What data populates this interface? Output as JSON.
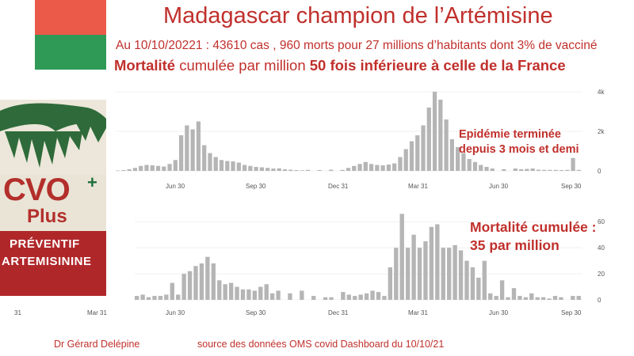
{
  "header": {
    "title": "Madagascar champion de l’Artémisine",
    "subtitle1": "Au 10/10/20221 : 43610 cas , 960 morts pour 27 millions d’habitants dont 3% de vacciné",
    "subtitle2_bold1": "Mortalité",
    "subtitle2_mid": " cumulée par million ",
    "subtitle2_bold2": "50 fois inférieure à celle de la France"
  },
  "colors": {
    "flag_red": "#eb5a49",
    "flag_green": "#2e9a55",
    "text_red": "#c0302c",
    "bar": "#b5b5b5"
  },
  "product_image": {
    "brand": "CVO",
    "plus_sign": "+",
    "plus": "Plus",
    "band_line1": "PRÉVENTIF",
    "band_line2": "ARTEMISININE"
  },
  "annotations": {
    "cases_line1": "Epidémie terminée",
    "cases_line2": "depuis 3 mois et demi",
    "deaths_line1": "Mortalité cumulée :",
    "deaths_line2": "35 par million"
  },
  "footer": {
    "author": "Dr Gérard Delépine",
    "source": "source des données OMS covid Dashboard du 10/10/21"
  },
  "chart_data": [
    {
      "type": "bar",
      "title": "",
      "xlabel": "",
      "ylabel": "",
      "x_ticks": [
        "Jun 30",
        "Sep 30",
        "Dec 31",
        "Mar 31",
        "Jun 30",
        "Sep 30"
      ],
      "y_ticks": [
        "0",
        "2k",
        "4k"
      ],
      "ylim": [
        0,
        4000
      ],
      "grid": true,
      "values": [
        20,
        40,
        80,
        150,
        250,
        300,
        280,
        250,
        220,
        350,
        550,
        1800,
        2300,
        2100,
        2500,
        1300,
        900,
        700,
        550,
        500,
        480,
        420,
        300,
        250,
        200,
        180,
        150,
        120,
        130,
        80,
        60,
        40,
        30,
        50,
        0,
        40,
        0,
        60,
        0,
        50,
        150,
        250,
        350,
        450,
        350,
        300,
        280,
        320,
        380,
        700,
        1100,
        1500,
        1800,
        2300,
        3200,
        4000,
        3600,
        2600,
        1600,
        1200,
        900,
        600,
        450,
        300,
        200,
        120,
        0,
        80,
        0,
        120,
        80,
        100,
        120,
        60,
        50,
        50,
        50,
        40,
        50,
        650,
        50
      ]
    },
    {
      "type": "bar",
      "title": "",
      "xlabel": "",
      "ylabel": "",
      "x_ticks": [
        "31",
        "Mar 31",
        "Jun 30",
        "Sep 30",
        "Dec 31",
        "Mar 31",
        "Jun 30",
        "Sep 30"
      ],
      "y_ticks": [
        "0",
        "20",
        "40",
        "60"
      ],
      "ylim": [
        0,
        65
      ],
      "grid": true,
      "values": [
        3,
        4,
        2,
        3,
        3,
        4,
        13,
        4,
        20,
        22,
        26,
        28,
        33,
        28,
        15,
        12,
        13,
        10,
        8,
        8,
        7,
        10,
        12,
        5,
        7,
        0,
        5,
        0,
        7,
        0,
        3,
        0,
        2,
        2,
        0,
        6,
        4,
        3,
        4,
        5,
        7,
        6,
        3,
        25,
        40,
        66,
        40,
        50,
        40,
        45,
        56,
        58,
        40,
        40,
        42,
        38,
        30,
        25,
        17,
        30,
        5,
        3,
        15,
        2,
        9,
        3,
        2,
        5,
        2,
        2,
        1,
        3,
        2,
        0,
        3,
        3
      ]
    }
  ]
}
